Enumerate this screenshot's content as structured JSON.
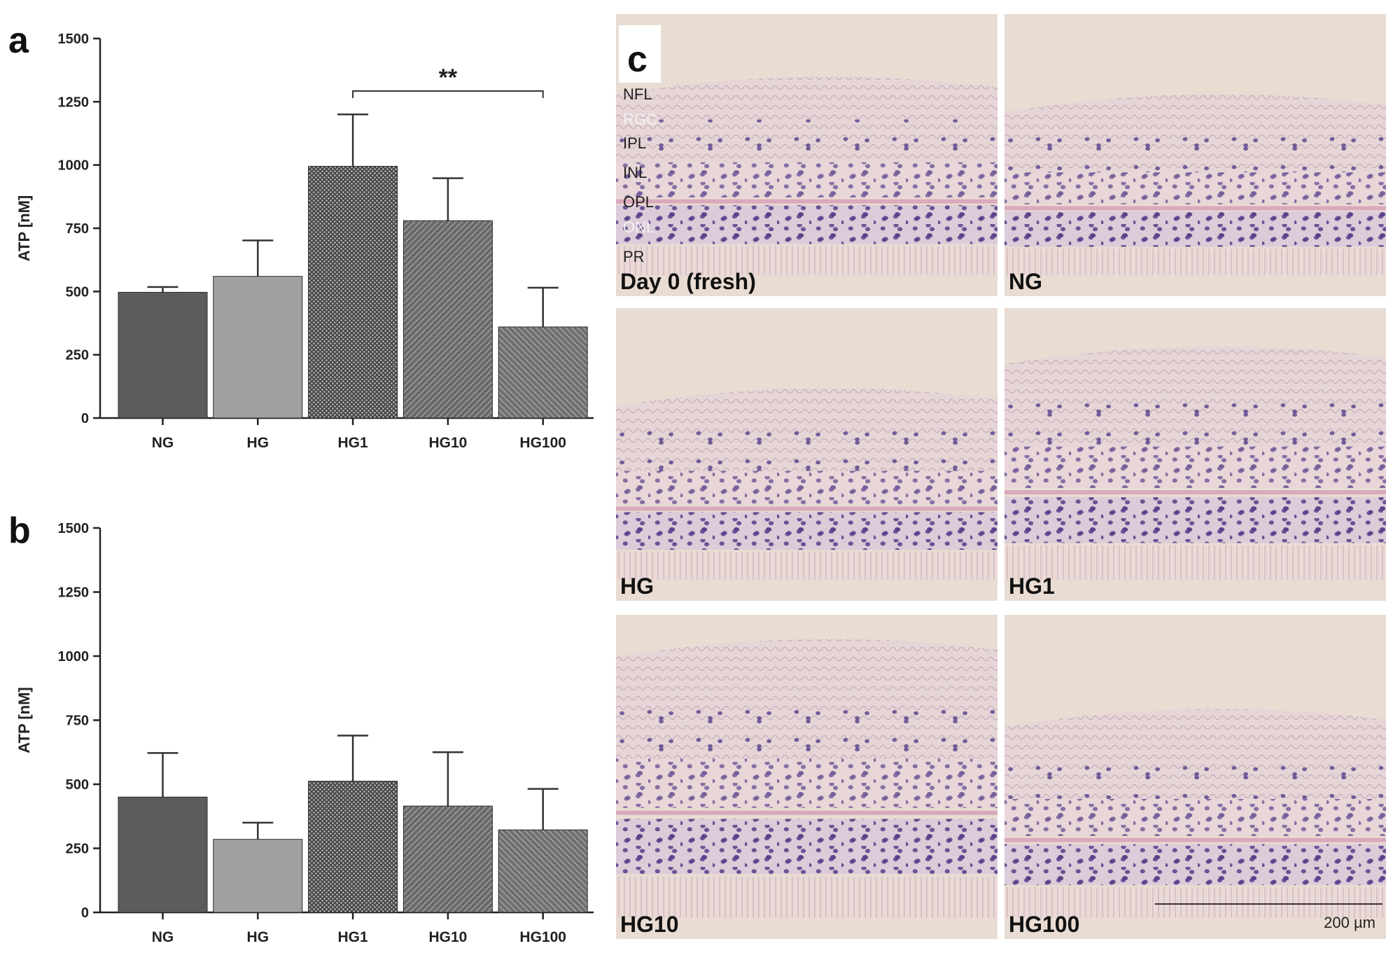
{
  "chart_data": [
    {
      "panel_label": "a",
      "type": "bar",
      "categories": [
        "NG",
        "HG",
        "HG1",
        "HG10",
        "HG100"
      ],
      "values": [
        497,
        560,
        995,
        780,
        360
      ],
      "error_upper": [
        518,
        702,
        1200,
        948,
        515
      ],
      "ylabel": "ATP [nM]",
      "ylim": [
        0,
        1500
      ],
      "yticks": [
        0,
        250,
        500,
        750,
        1000,
        1250,
        1500
      ],
      "significance": {
        "from": "HG1",
        "to": "HG100",
        "label": "**"
      },
      "bar_colors": [
        "#5c5c5c",
        "#a0a0a2",
        "#4a4a4a",
        "#6a6a6a",
        "#707070"
      ],
      "grid": false
    },
    {
      "panel_label": "b",
      "type": "bar",
      "categories": [
        "NG",
        "HG",
        "HG1",
        "HG10",
        "HG100"
      ],
      "values": [
        450,
        285,
        512,
        415,
        322
      ],
      "error_upper": [
        622,
        350,
        690,
        625,
        482
      ],
      "ylabel": "ATP [nM]",
      "ylim": [
        0,
        1500
      ],
      "yticks": [
        0,
        250,
        500,
        750,
        1000,
        1250,
        1500
      ],
      "bar_colors": [
        "#5c5c5c",
        "#a0a0a2",
        "#4a4a4a",
        "#6a6a6a",
        "#707070"
      ],
      "grid": false
    }
  ],
  "histology": {
    "panel_label": "c",
    "background_color": "#e9dcd2",
    "stain_color": "#55408a",
    "panels": [
      {
        "label": "Day 0 (fresh)"
      },
      {
        "label": "NG"
      },
      {
        "label": "HG"
      },
      {
        "label": "HG1"
      },
      {
        "label": "HG10"
      },
      {
        "label": "HG100"
      }
    ],
    "layer_labels": [
      "NFL",
      "RGC",
      "IPL",
      "INL",
      "OPL",
      "ONL",
      "PR"
    ],
    "scale_bar": "200 µm"
  }
}
